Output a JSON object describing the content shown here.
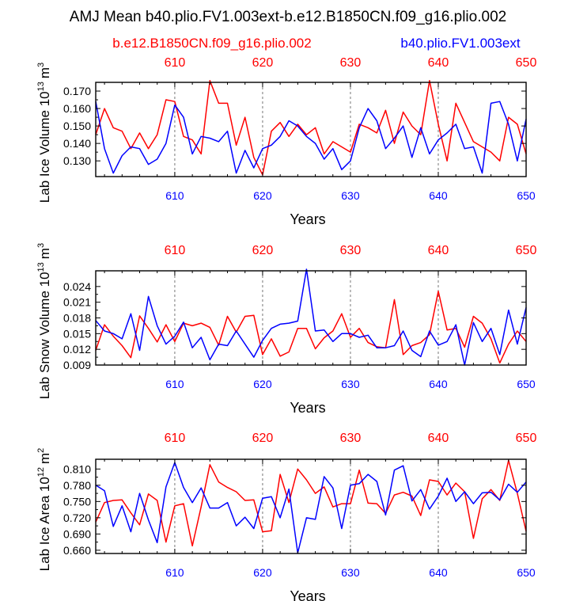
{
  "figure": {
    "title": "AMJ Mean b40.plio.FV1.003ext-b.e12.B1850CN.f09_g16.plio.002",
    "legend_left": "b.e12.B1850CN.f09_g16.plio.002",
    "legend_right": "b40.plio.FV1.003ext",
    "colors": {
      "red_case": "#ff0000",
      "blue_case": "#0000ff",
      "axis": "#000000",
      "grid": "#777777"
    }
  },
  "chart_data": [
    {
      "type": "line",
      "xlabel": "Years",
      "ylabel_main": "Lab Ice Volume 10",
      "ylabel_exp": "13",
      "ylabel_unit": "m",
      "ylabel_unit_exp": "3",
      "xlim": [
        601,
        650
      ],
      "ylim": [
        0.121,
        0.175
      ],
      "yticks": [
        0.13,
        0.14,
        0.15,
        0.16,
        0.17
      ],
      "ytick_labels": [
        "0.130",
        "0.140",
        "0.150",
        "0.160",
        "0.170"
      ],
      "xticks": [
        610,
        620,
        630,
        640,
        650
      ],
      "xtick_labels": [
        "610",
        "620",
        "630",
        "640",
        "650"
      ],
      "x": [
        601,
        602,
        603,
        604,
        605,
        606,
        607,
        608,
        609,
        610,
        611,
        612,
        613,
        614,
        615,
        616,
        617,
        618,
        619,
        620,
        621,
        622,
        623,
        624,
        625,
        626,
        627,
        628,
        629,
        630,
        631,
        632,
        633,
        634,
        635,
        636,
        637,
        638,
        639,
        640,
        641,
        642,
        643,
        644,
        645,
        646,
        647,
        648,
        649,
        650
      ],
      "series": [
        {
          "name": "b.e12.B1850CN.f09_g16.plio.002",
          "color": "red",
          "values": [
            0.145,
            0.16,
            0.149,
            0.147,
            0.137,
            0.146,
            0.137,
            0.145,
            0.165,
            0.164,
            0.144,
            0.142,
            0.134,
            0.176,
            0.163,
            0.163,
            0.139,
            0.155,
            0.132,
            0.122,
            0.147,
            0.152,
            0.144,
            0.151,
            0.145,
            0.149,
            0.134,
            0.141,
            0.138,
            0.135,
            0.151,
            0.149,
            0.146,
            0.159,
            0.14,
            0.158,
            0.15,
            0.145,
            0.176,
            0.151,
            0.13,
            0.163,
            0.152,
            0.141,
            0.138,
            0.135,
            0.13,
            0.155,
            0.151,
            0.134
          ]
        },
        {
          "name": "b40.plio.FV1.003ext",
          "color": "blue",
          "values": [
            0.164,
            0.137,
            0.123,
            0.133,
            0.138,
            0.137,
            0.128,
            0.131,
            0.14,
            0.162,
            0.155,
            0.134,
            0.144,
            0.143,
            0.141,
            0.147,
            0.123,
            0.136,
            0.126,
            0.137,
            0.139,
            0.144,
            0.153,
            0.15,
            0.144,
            0.14,
            0.131,
            0.137,
            0.125,
            0.13,
            0.149,
            0.16,
            0.153,
            0.137,
            0.143,
            0.15,
            0.132,
            0.149,
            0.134,
            0.142,
            0.146,
            0.151,
            0.137,
            0.138,
            0.123,
            0.163,
            0.164,
            0.151,
            0.13,
            0.154
          ]
        }
      ]
    },
    {
      "type": "line",
      "xlabel": "Years",
      "ylabel_main": "Lab Snow Volume 10",
      "ylabel_exp": "13",
      "ylabel_unit": "m",
      "ylabel_unit_exp": "3",
      "xlim": [
        601,
        650
      ],
      "ylim": [
        0.009,
        0.027
      ],
      "yticks": [
        0.009,
        0.012,
        0.015,
        0.018,
        0.021,
        0.024
      ],
      "ytick_labels": [
        "0.009",
        "0.012",
        "0.015",
        "0.018",
        "0.021",
        "0.024"
      ],
      "xticks": [
        610,
        620,
        630,
        640,
        650
      ],
      "xtick_labels": [
        "610",
        "620",
        "630",
        "640",
        "650"
      ],
      "x": [
        601,
        602,
        603,
        604,
        605,
        606,
        607,
        608,
        609,
        610,
        611,
        612,
        613,
        614,
        615,
        616,
        617,
        618,
        619,
        620,
        621,
        622,
        623,
        624,
        625,
        626,
        627,
        628,
        629,
        630,
        631,
        632,
        633,
        634,
        635,
        636,
        637,
        638,
        639,
        640,
        641,
        642,
        643,
        644,
        645,
        646,
        647,
        648,
        649,
        650
      ],
      "series": [
        {
          "name": "b.e12.B1850CN.f09_g16.plio.002",
          "color": "red",
          "values": [
            0.0118,
            0.0167,
            0.0145,
            0.0127,
            0.0104,
            0.0184,
            0.016,
            0.0134,
            0.0167,
            0.0135,
            0.017,
            0.0165,
            0.017,
            0.0162,
            0.0128,
            0.0183,
            0.0153,
            0.0183,
            0.0185,
            0.011,
            0.014,
            0.0107,
            0.0115,
            0.016,
            0.016,
            0.0121,
            0.0142,
            0.0155,
            0.0188,
            0.0143,
            0.016,
            0.0133,
            0.0125,
            0.0123,
            0.0215,
            0.011,
            0.0127,
            0.0133,
            0.0148,
            0.0231,
            0.0157,
            0.016,
            0.0124,
            0.0183,
            0.017,
            0.014,
            0.0094,
            0.013,
            0.0155,
            0.0135
          ]
        },
        {
          "name": "b40.plio.FV1.003ext",
          "color": "blue",
          "values": [
            0.0175,
            0.0155,
            0.015,
            0.014,
            0.0188,
            0.0118,
            0.0221,
            0.0165,
            0.013,
            0.0145,
            0.0172,
            0.0123,
            0.0143,
            0.01,
            0.013,
            0.0127,
            0.0155,
            0.013,
            0.0105,
            0.0137,
            0.016,
            0.0168,
            0.017,
            0.0174,
            0.0273,
            0.0155,
            0.0157,
            0.0135,
            0.015,
            0.015,
            0.0143,
            0.0147,
            0.0123,
            0.0123,
            0.0127,
            0.0155,
            0.0118,
            0.0106,
            0.0155,
            0.0128,
            0.0135,
            0.0167,
            0.009,
            0.0171,
            0.0135,
            0.016,
            0.011,
            0.0195,
            0.013,
            0.02
          ]
        }
      ]
    },
    {
      "type": "line",
      "xlabel": "Years",
      "ylabel_main": "Lab Ice Area 10",
      "ylabel_exp": "12",
      "ylabel_unit": "m",
      "ylabel_unit_exp": "2",
      "xlim": [
        601,
        650
      ],
      "ylim": [
        0.654,
        0.828
      ],
      "yticks": [
        0.66,
        0.69,
        0.72,
        0.75,
        0.78,
        0.81
      ],
      "ytick_labels": [
        "0.660",
        "0.690",
        "0.720",
        "0.750",
        "0.780",
        "0.810"
      ],
      "xticks": [
        610,
        620,
        630,
        640,
        650
      ],
      "xtick_labels": [
        "610",
        "620",
        "630",
        "640",
        "650"
      ],
      "x": [
        601,
        602,
        603,
        604,
        605,
        606,
        607,
        608,
        609,
        610,
        611,
        612,
        613,
        614,
        615,
        616,
        617,
        618,
        619,
        620,
        621,
        622,
        623,
        624,
        625,
        626,
        627,
        628,
        629,
        630,
        631,
        632,
        633,
        634,
        635,
        636,
        637,
        638,
        639,
        640,
        641,
        642,
        643,
        644,
        645,
        646,
        647,
        648,
        649,
        650
      ],
      "series": [
        {
          "name": "b.e12.B1850CN.f09_g16.plio.002",
          "color": "red",
          "values": [
            0.712,
            0.748,
            0.752,
            0.753,
            0.729,
            0.707,
            0.764,
            0.752,
            0.675,
            0.742,
            0.746,
            0.668,
            0.74,
            0.818,
            0.786,
            0.776,
            0.768,
            0.752,
            0.753,
            0.694,
            0.696,
            0.8,
            0.748,
            0.81,
            0.79,
            0.765,
            0.777,
            0.74,
            0.746,
            0.746,
            0.808,
            0.747,
            0.746,
            0.728,
            0.762,
            0.767,
            0.76,
            0.724,
            0.79,
            0.787,
            0.762,
            0.784,
            0.768,
            0.682,
            0.755,
            0.772,
            0.752,
            0.826,
            0.765,
            0.695
          ]
        },
        {
          "name": "b40.plio.FV1.003ext",
          "color": "blue",
          "values": [
            0.78,
            0.77,
            0.704,
            0.742,
            0.694,
            0.765,
            0.716,
            0.674,
            0.777,
            0.822,
            0.776,
            0.748,
            0.775,
            0.738,
            0.738,
            0.748,
            0.705,
            0.721,
            0.7,
            0.756,
            0.759,
            0.72,
            0.773,
            0.655,
            0.72,
            0.717,
            0.796,
            0.775,
            0.7,
            0.78,
            0.783,
            0.8,
            0.787,
            0.725,
            0.808,
            0.816,
            0.751,
            0.772,
            0.736,
            0.76,
            0.793,
            0.75,
            0.768,
            0.746,
            0.766,
            0.767,
            0.753,
            0.782,
            0.767,
            0.786
          ]
        }
      ]
    }
  ]
}
